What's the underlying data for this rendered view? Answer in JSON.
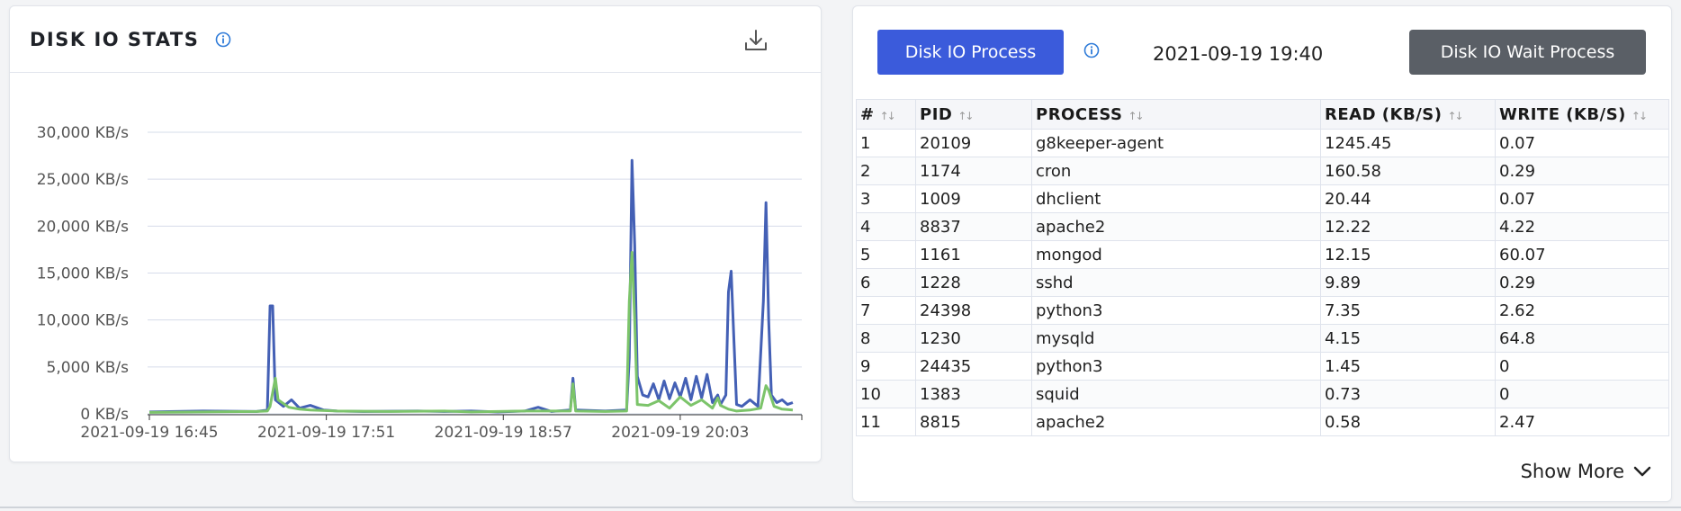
{
  "disk_io_stats": {
    "title": "DISK IO STATS",
    "info_icon": "info-circle-icon",
    "download_icon": "download-icon"
  },
  "chart_data": {
    "type": "line",
    "title": "DISK IO STATS",
    "xlabel": "",
    "ylabel": "",
    "y_ticks": [
      "0 KB/s",
      "5,000 KB/s",
      "10,000 KB/s",
      "15,000 KB/s",
      "20,000 KB/s",
      "25,000 KB/s",
      "30,000 KB/s"
    ],
    "ylim": [
      0,
      30000
    ],
    "x_ticks": [
      "2021-09-19 16:45",
      "2021-09-19 17:51",
      "2021-09-19 18:57",
      "2021-09-19 20:03"
    ],
    "x_range_minutes": [
      0,
      242
    ],
    "grid": true,
    "series": [
      {
        "color": "#4460b5",
        "points": [
          [
            0,
            200
          ],
          [
            20,
            300
          ],
          [
            40,
            250
          ],
          [
            44,
            400
          ],
          [
            45,
            11500
          ],
          [
            46,
            11500
          ],
          [
            47,
            1500
          ],
          [
            50,
            800
          ],
          [
            53,
            1500
          ],
          [
            56,
            600
          ],
          [
            60,
            900
          ],
          [
            65,
            400
          ],
          [
            70,
            300
          ],
          [
            80,
            250
          ],
          [
            100,
            300
          ],
          [
            110,
            250
          ],
          [
            120,
            300
          ],
          [
            130,
            200
          ],
          [
            140,
            300
          ],
          [
            145,
            700
          ],
          [
            150,
            250
          ],
          [
            157,
            400
          ],
          [
            158,
            3800
          ],
          [
            159,
            400
          ],
          [
            170,
            300
          ],
          [
            178,
            400
          ],
          [
            179,
            6000
          ],
          [
            180,
            27000
          ],
          [
            181,
            18000
          ],
          [
            182,
            4000
          ],
          [
            184,
            2000
          ],
          [
            186,
            1800
          ],
          [
            188,
            3200
          ],
          [
            190,
            1500
          ],
          [
            192,
            3500
          ],
          [
            194,
            1600
          ],
          [
            196,
            3300
          ],
          [
            198,
            1800
          ],
          [
            200,
            3800
          ],
          [
            202,
            1500
          ],
          [
            204,
            4000
          ],
          [
            206,
            1700
          ],
          [
            208,
            4200
          ],
          [
            210,
            1200
          ],
          [
            212,
            2000
          ],
          [
            213,
            1000
          ],
          [
            215,
            2000
          ],
          [
            216,
            13000
          ],
          [
            217,
            15200
          ],
          [
            218,
            8000
          ],
          [
            219,
            1000
          ],
          [
            221,
            800
          ],
          [
            224,
            1500
          ],
          [
            227,
            800
          ],
          [
            229,
            12000
          ],
          [
            230,
            22500
          ],
          [
            231,
            10000
          ],
          [
            232,
            2000
          ],
          [
            234,
            1200
          ],
          [
            236,
            1500
          ],
          [
            238,
            1000
          ],
          [
            240,
            1200
          ]
        ]
      },
      {
        "color": "#7cc46a",
        "points": [
          [
            0,
            150
          ],
          [
            20,
            200
          ],
          [
            40,
            250
          ],
          [
            44,
            300
          ],
          [
            45,
            800
          ],
          [
            47,
            3800
          ],
          [
            48,
            1500
          ],
          [
            52,
            700
          ],
          [
            56,
            500
          ],
          [
            60,
            400
          ],
          [
            70,
            300
          ],
          [
            90,
            250
          ],
          [
            110,
            300
          ],
          [
            120,
            200
          ],
          [
            140,
            300
          ],
          [
            157,
            300
          ],
          [
            158,
            3200
          ],
          [
            159,
            300
          ],
          [
            170,
            250
          ],
          [
            178,
            300
          ],
          [
            179,
            12000
          ],
          [
            180,
            17200
          ],
          [
            181,
            10000
          ],
          [
            182,
            1000
          ],
          [
            186,
            900
          ],
          [
            190,
            1400
          ],
          [
            194,
            600
          ],
          [
            198,
            1800
          ],
          [
            202,
            900
          ],
          [
            206,
            1500
          ],
          [
            210,
            600
          ],
          [
            212,
            1700
          ],
          [
            213,
            900
          ],
          [
            216,
            500
          ],
          [
            219,
            300
          ],
          [
            224,
            400
          ],
          [
            228,
            600
          ],
          [
            230,
            3000
          ],
          [
            231,
            2500
          ],
          [
            233,
            800
          ],
          [
            236,
            500
          ],
          [
            240,
            400
          ]
        ]
      }
    ]
  },
  "process_panel": {
    "primary_button": "Disk IO Process",
    "info_icon": "info-circle-icon",
    "timestamp": "2021-09-19 19:40",
    "secondary_button": "Disk IO Wait Process",
    "columns": [
      "#",
      "PID",
      "PROCESS",
      "READ (KB/S)",
      "WRITE (KB/S)"
    ],
    "sort_icon": "↑↓",
    "rows": [
      [
        "1",
        "20109",
        "g8keeper-agent",
        "1245.45",
        "0.07"
      ],
      [
        "2",
        "1174",
        "cron",
        "160.58",
        "0.29"
      ],
      [
        "3",
        "1009",
        "dhclient",
        "20.44",
        "0.07"
      ],
      [
        "4",
        "8837",
        "apache2",
        "12.22",
        "4.22"
      ],
      [
        "5",
        "1161",
        "mongod",
        "12.15",
        "60.07"
      ],
      [
        "6",
        "1228",
        "sshd",
        "9.89",
        "0.29"
      ],
      [
        "7",
        "24398",
        "python3",
        "7.35",
        "2.62"
      ],
      [
        "8",
        "1230",
        "mysqld",
        "4.15",
        "64.8"
      ],
      [
        "9",
        "24435",
        "python3",
        "1.45",
        "0"
      ],
      [
        "10",
        "1383",
        "squid",
        "0.73",
        "0"
      ],
      [
        "11",
        "8815",
        "apache2",
        "0.58",
        "2.47"
      ]
    ],
    "show_more": "Show More",
    "show_more_icon": "chevron-down-icon"
  }
}
